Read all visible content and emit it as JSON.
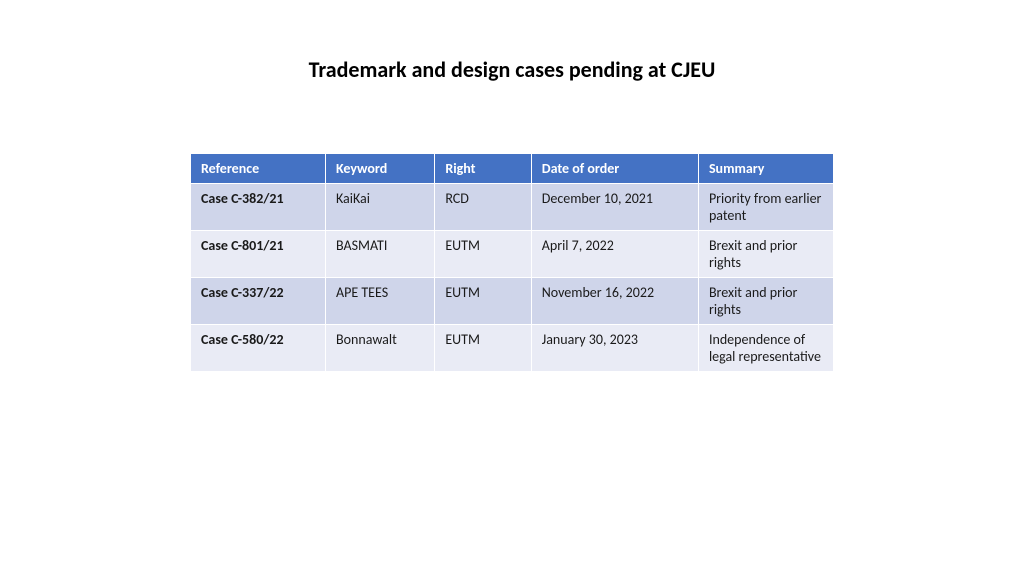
{
  "title": "Trademark and design cases pending at CJEU",
  "table": {
    "header_bg": "#4472c4",
    "row_bg_odd": "#cfd5ea",
    "row_bg_even": "#e9ebf5",
    "col_widths": [
      "21%",
      "17%",
      "15%",
      "26%",
      "21%"
    ],
    "columns": [
      "Reference",
      "Keyword",
      "Right",
      "Date of order",
      "Summary"
    ],
    "rows": [
      [
        "Case C-382/21",
        "KaiKai",
        "RCD",
        "December 10, 2021",
        "Priority from earlier patent"
      ],
      [
        "Case C-801/21",
        "BASMATI",
        "EUTM",
        "April 7, 2022",
        "Brexit and prior rights"
      ],
      [
        "Case C-337/22",
        "APE TEES",
        "EUTM",
        "November 16, 2022",
        "Brexit and prior rights"
      ],
      [
        "Case C-580/22",
        "Bonnawalt",
        "EUTM",
        "January 30, 2023",
        "Independence of legal representative"
      ]
    ]
  }
}
